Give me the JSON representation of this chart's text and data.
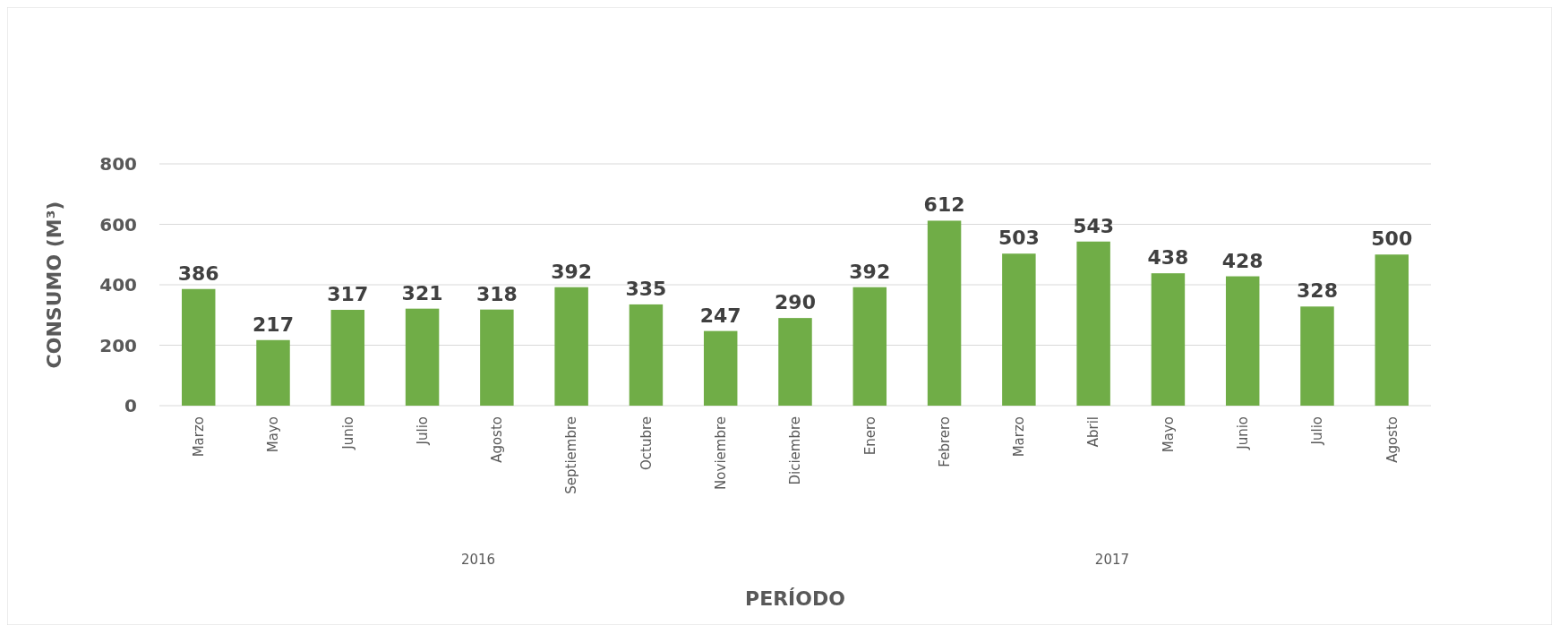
{
  "chart_data": {
    "type": "bar",
    "xlabel": "PERÍODO",
    "ylabel": "CONSUMO (M³)",
    "categories": [
      "Marzo",
      "Mayo",
      "Junio",
      "Julio",
      "Agosto",
      "Septiembre",
      "Octubre",
      "Noviembre",
      "Diciembre",
      "Enero",
      "Febrero",
      "Marzo",
      "Abril",
      "Mayo",
      "Junio",
      "Julio",
      "Agosto"
    ],
    "values": [
      386,
      217,
      317,
      321,
      318,
      392,
      335,
      247,
      290,
      392,
      612,
      503,
      543,
      438,
      428,
      328,
      500
    ],
    "color": "#70ad47",
    "ylim": [
      0,
      800
    ],
    "yticks": [
      0,
      200,
      400,
      600,
      800
    ],
    "grid": "y",
    "data_labels": true,
    "annotations": [
      "2016",
      "2017"
    ]
  }
}
